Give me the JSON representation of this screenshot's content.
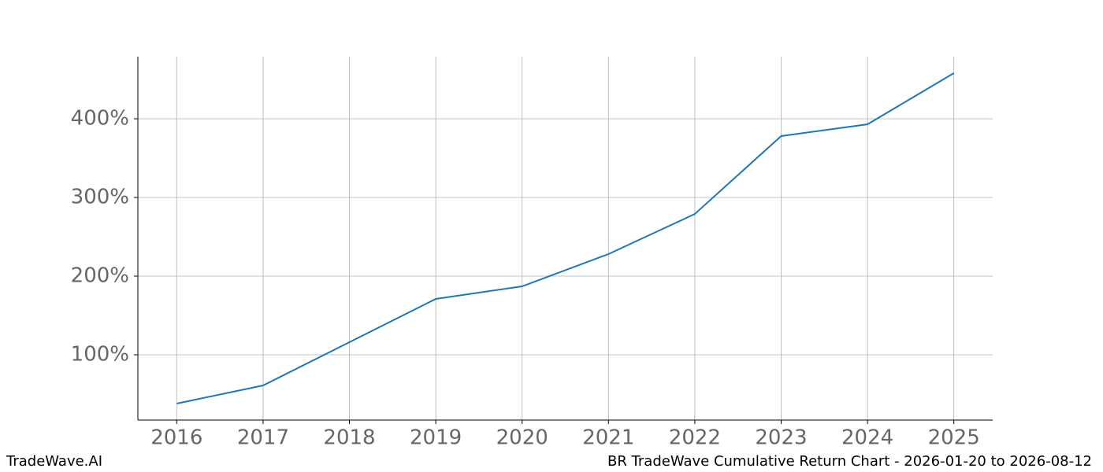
{
  "chart_data": {
    "type": "line",
    "x": [
      2016,
      2017,
      2018,
      2019,
      2020,
      2021,
      2022,
      2023,
      2024,
      2025
    ],
    "series": [
      {
        "color": "#1f77b4",
        "values": [
          38,
          61,
          116,
          171,
          187,
          228,
          279,
          378,
          393,
          458
        ]
      }
    ],
    "xlim": [
      2015.55,
      2025.45
    ],
    "xticks": [
      2016,
      2017,
      2018,
      2019,
      2020,
      2021,
      2022,
      2023,
      2024,
      2025
    ],
    "ylim": [
      17,
      479
    ],
    "yticks": [
      {
        "value": 100,
        "label": "100%"
      },
      {
        "value": 200,
        "label": "200%"
      },
      {
        "value": 300,
        "label": "300%"
      },
      {
        "value": 400,
        "label": "400%"
      }
    ],
    "grid": true
  },
  "footer": {
    "left": "TradeWave.AI",
    "right": "BR TradeWave Cumulative Return Chart - 2026-01-20 to 2026-08-12"
  }
}
